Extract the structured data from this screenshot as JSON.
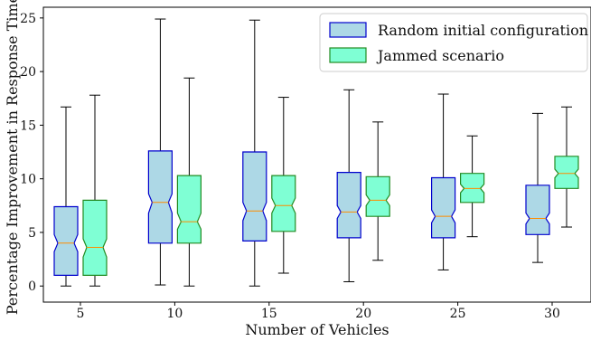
{
  "chart_data": {
    "type": "boxplot",
    "notched": true,
    "xlabel": "Number of Vehicles",
    "ylabel": "Percentage Improvement in Response Time",
    "categories": [
      "5",
      "10",
      "15",
      "20",
      "25",
      "30"
    ],
    "ylim": [
      -1.5,
      26
    ],
    "yticks": [
      0,
      5,
      10,
      15,
      20,
      25
    ],
    "grid": false,
    "legend_position": "top-right",
    "median_color": "#ff8c00",
    "series": [
      {
        "name": "Random initial configuration",
        "fill": "#add8e6",
        "edge": "#0000cd",
        "boxes": [
          {
            "min": 0.0,
            "q1": 1.0,
            "notch_low": 3.2,
            "median": 4.0,
            "notch_high": 4.8,
            "q3": 7.4,
            "max": 16.7
          },
          {
            "min": 0.1,
            "q1": 4.0,
            "notch_low": 6.8,
            "median": 7.8,
            "notch_high": 8.6,
            "q3": 12.6,
            "max": 24.9
          },
          {
            "min": 0.0,
            "q1": 4.2,
            "notch_low": 6.1,
            "median": 7.0,
            "notch_high": 7.8,
            "q3": 12.5,
            "max": 24.8
          },
          {
            "min": 0.4,
            "q1": 4.5,
            "notch_low": 6.3,
            "median": 6.9,
            "notch_high": 7.5,
            "q3": 10.6,
            "max": 18.3
          },
          {
            "min": 1.5,
            "q1": 4.5,
            "notch_low": 5.9,
            "median": 6.5,
            "notch_high": 7.1,
            "q3": 10.1,
            "max": 17.9
          },
          {
            "min": 2.2,
            "q1": 4.8,
            "notch_low": 5.8,
            "median": 6.3,
            "notch_high": 6.8,
            "q3": 9.4,
            "max": 16.1
          }
        ]
      },
      {
        "name": "Jammed scenario",
        "fill": "#7fffd4",
        "edge": "#228b22",
        "boxes": [
          {
            "min": 0.0,
            "q1": 1.0,
            "notch_low": 2.7,
            "median": 3.6,
            "notch_high": 4.4,
            "q3": 8.0,
            "max": 17.8
          },
          {
            "min": 0.0,
            "q1": 4.0,
            "notch_low": 5.3,
            "median": 6.0,
            "notch_high": 6.8,
            "q3": 10.3,
            "max": 19.4
          },
          {
            "min": 1.2,
            "q1": 5.1,
            "notch_low": 6.8,
            "median": 7.5,
            "notch_high": 8.2,
            "q3": 10.3,
            "max": 17.6
          },
          {
            "min": 2.4,
            "q1": 6.5,
            "notch_low": 7.5,
            "median": 8.0,
            "notch_high": 8.5,
            "q3": 10.2,
            "max": 15.3
          },
          {
            "min": 4.6,
            "q1": 7.8,
            "notch_low": 8.7,
            "median": 9.1,
            "notch_high": 9.5,
            "q3": 10.5,
            "max": 14.0
          },
          {
            "min": 5.5,
            "q1": 9.1,
            "notch_low": 10.1,
            "median": 10.5,
            "notch_high": 10.9,
            "q3": 12.1,
            "max": 16.7
          }
        ]
      }
    ]
  }
}
